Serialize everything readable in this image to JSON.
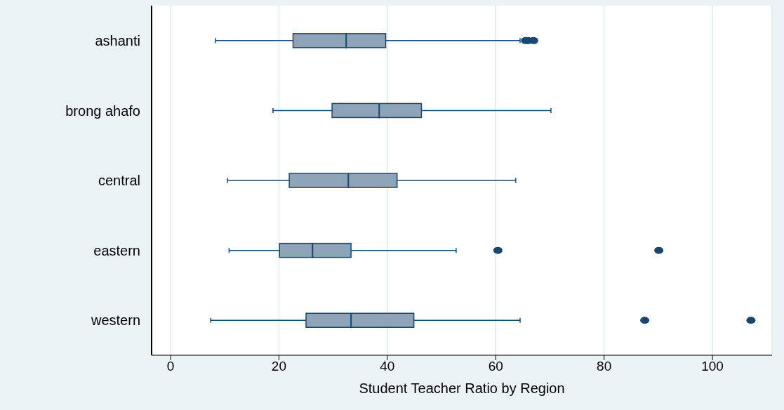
{
  "chart_data": {
    "type": "box",
    "orientation": "horizontal",
    "xlabel": "Student Teacher Ratio by Region",
    "categories": [
      "ashanti",
      "brong ahafo",
      "central",
      "eastern",
      "western"
    ],
    "boxes": [
      {
        "low": 8.3,
        "q1": 22.6,
        "median": 32.4,
        "q3": 39.7,
        "high": 64.5,
        "outliers": [
          65.5,
          66,
          67
        ]
      },
      {
        "low": 18.9,
        "q1": 29.8,
        "median": 38.5,
        "q3": 46.3,
        "high": 70.2
      },
      {
        "low": 10.5,
        "q1": 21.9,
        "median": 32.8,
        "q3": 41.8,
        "high": 63.7
      },
      {
        "low": 10.8,
        "q1": 20.1,
        "median": 26.2,
        "q3": 33.3,
        "high": 52.7,
        "outliers": [
          60.4,
          90.1
        ]
      },
      {
        "low": 7.4,
        "q1": 25,
        "median": 33.3,
        "q3": 44.9,
        "high": 64.5,
        "outliers": [
          87.5,
          107.1
        ]
      }
    ],
    "color": "#8da3b8",
    "xlim": [
      -3.5,
      111
    ],
    "xticks": [
      0,
      20,
      40,
      60,
      80,
      100
    ],
    "grid": "x"
  }
}
